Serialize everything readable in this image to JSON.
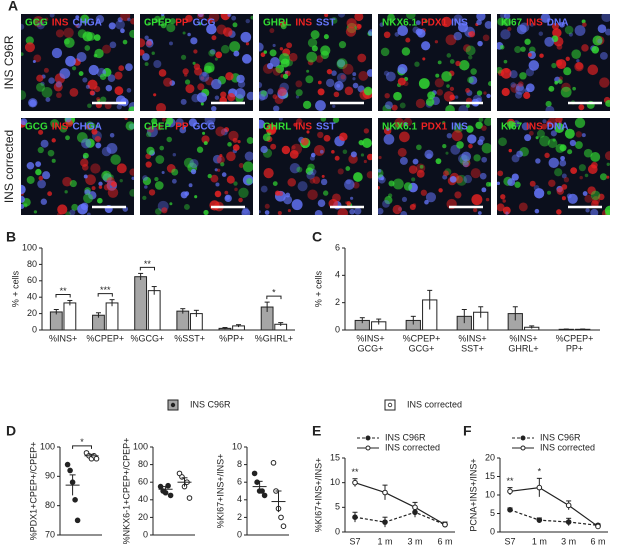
{
  "panel_labels": [
    "A",
    "B",
    "C",
    "D",
    "E",
    "F"
  ],
  "row_labels": [
    "INS C96R",
    "INS corrected"
  ],
  "image_stains": [
    [
      {
        "text": "GCG",
        "color": "#33dd33"
      },
      {
        "text": "INS",
        "color": "#ee2222"
      },
      {
        "text": "CHGA",
        "color": "#6677ff"
      }
    ],
    [
      {
        "text": "CPEP",
        "color": "#33dd33"
      },
      {
        "text": "PP",
        "color": "#ee2222"
      },
      {
        "text": "GCG",
        "color": "#6677ff"
      }
    ],
    [
      {
        "text": "GHRL",
        "color": "#33dd33"
      },
      {
        "text": "INS",
        "color": "#ee2222"
      },
      {
        "text": "SST",
        "color": "#6677ff"
      }
    ],
    [
      {
        "text": "NKX6.1",
        "color": "#33dd33"
      },
      {
        "text": "PDX1",
        "color": "#ee2222"
      },
      {
        "text": "INS",
        "color": "#6677ff"
      }
    ],
    [
      {
        "text": "KI67",
        "color": "#33dd33"
      },
      {
        "text": "INS",
        "color": "#ee2222"
      },
      {
        "text": "DNA",
        "color": "#6677ff"
      }
    ]
  ],
  "shared_legend": [
    {
      "name": "INS C96R",
      "fill": "#a6a6a6"
    },
    {
      "name": "INS corrected",
      "fill": "#ffffff"
    }
  ],
  "chart_data": [
    {
      "type": "bar",
      "y_label": "% + cells",
      "categories": [
        "%INS+",
        "%CPEP+",
        "%GCG+",
        "%SST+",
        "%PP+",
        "%GHRL+"
      ],
      "series": [
        {
          "color": "#a6a6a6",
          "values": [
            22,
            18,
            65,
            23,
            2,
            28
          ],
          "errors": [
            3,
            3,
            4,
            3,
            1,
            6
          ]
        },
        {
          "color": "#ffffff",
          "values": [
            33,
            33,
            48,
            20,
            5,
            7
          ],
          "errors": [
            3,
            4,
            5,
            4,
            1.5,
            2
          ]
        }
      ],
      "significance": [
        "**",
        "***",
        "**",
        null,
        null,
        "*"
      ],
      "ylim": [
        0,
        100
      ],
      "yticks": [
        0,
        20,
        40,
        60,
        80,
        100
      ]
    },
    {
      "type": "bar",
      "y_label": "% + cells",
      "categories": [
        [
          "%INS+",
          "GCG+"
        ],
        [
          "%CPEP+",
          "GCG+"
        ],
        [
          "%INS+",
          "SST+"
        ],
        [
          "%INS+",
          "GHRL+"
        ],
        [
          "%CPEP+",
          "PP+"
        ]
      ],
      "series": [
        {
          "color": "#a6a6a6",
          "values": [
            0.7,
            0.7,
            1.0,
            1.2,
            0.05
          ],
          "errors": [
            0.2,
            0.3,
            0.5,
            0.5,
            0.02
          ]
        },
        {
          "color": "#ffffff",
          "values": [
            0.6,
            2.2,
            1.3,
            0.2,
            0.05
          ],
          "errors": [
            0.2,
            0.7,
            0.4,
            0.1,
            0.02
          ]
        }
      ],
      "ylim": [
        0,
        6
      ],
      "yticks": [
        0,
        2,
        4,
        6
      ]
    },
    {
      "type": "dot",
      "y_label": "%PDX1+CPEP+/CPEP+",
      "series": [
        {
          "color": "#222222",
          "values": [
            94,
            92,
            88,
            82,
            75
          ],
          "mean": 87,
          "error": 3.5
        },
        {
          "color": "#ffffff",
          "values": [
            98,
            97,
            96,
            97,
            96
          ],
          "mean": 97,
          "error": 0.5
        }
      ],
      "significance": "*",
      "ylim": [
        70,
        100
      ],
      "yticks": [
        70,
        80,
        90,
        100
      ]
    },
    {
      "type": "dot",
      "y_label": "%NKX6-1+CPEP+/CPEP+",
      "series": [
        {
          "color": "#222222",
          "values": [
            55,
            50,
            48,
            56,
            45
          ],
          "mean": 52,
          "error": 3
        },
        {
          "color": "#ffffff",
          "values": [
            70,
            66,
            55,
            60,
            42
          ],
          "mean": 60,
          "error": 5
        }
      ],
      "ylim": [
        0,
        100
      ],
      "yticks": [
        0,
        20,
        40,
        60,
        80,
        100
      ]
    },
    {
      "type": "dot",
      "y_label": "%KI67+INS+/INS+",
      "series": [
        {
          "color": "#222222",
          "values": [
            7,
            6,
            5,
            5,
            4.5
          ],
          "mean": 5.5,
          "error": 0.6
        },
        {
          "color": "#ffffff",
          "values": [
            8.2,
            5,
            3,
            2,
            1
          ],
          "mean": 3.8,
          "error": 1.2
        }
      ],
      "ylim": [
        0,
        10
      ],
      "yticks": [
        0,
        2,
        4,
        6,
        8,
        10
      ]
    },
    {
      "type": "line",
      "y_label": "%KI67+INS+/INS+",
      "categories": [
        "S7",
        "1 m",
        "3 m",
        "6 m"
      ],
      "series": [
        {
          "name": "INS C96R",
          "color": "#222222",
          "dash": true,
          "values": [
            3,
            2,
            4,
            1.5
          ],
          "errors": [
            1,
            1,
            1,
            0.5
          ]
        },
        {
          "name": "INS corrected",
          "color": "#222222",
          "dash": false,
          "values": [
            10,
            8,
            5,
            1.5
          ],
          "errors": [
            0.8,
            1.5,
            1,
            0.5
          ]
        }
      ],
      "significance": [
        "**",
        null,
        null,
        null
      ],
      "ylim": [
        0,
        15
      ],
      "yticks": [
        0,
        5,
        10,
        15
      ]
    },
    {
      "type": "line",
      "y_label": "PCNA+INS+/INS+",
      "categories": [
        "S7",
        "1 m",
        "3 m",
        "6 m"
      ],
      "series": [
        {
          "name": "INS C96R",
          "color": "#222222",
          "dash": true,
          "values": [
            6,
            3.2,
            2.7,
            1.8
          ],
          "errors": [
            0.5,
            0.6,
            1,
            0.4
          ]
        },
        {
          "name": "INS corrected",
          "color": "#222222",
          "dash": false,
          "values": [
            11,
            12,
            7.2,
            1.5
          ],
          "errors": [
            1,
            2.5,
            1.2,
            0.4
          ]
        }
      ],
      "significance": [
        "**",
        "*",
        null,
        null
      ],
      "ylim": [
        0,
        20
      ],
      "yticks": [
        0,
        5,
        10,
        15,
        20
      ]
    }
  ]
}
